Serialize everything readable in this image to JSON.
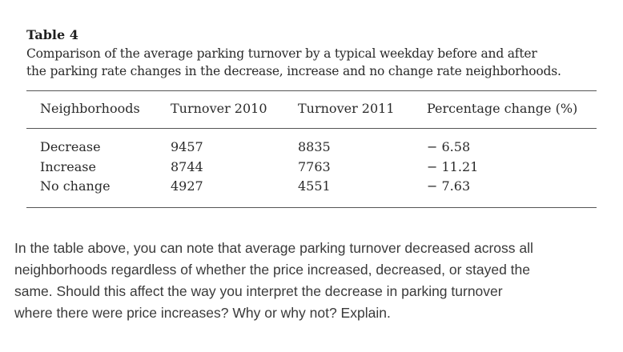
{
  "table": {
    "label": "Table 4",
    "caption_line1": "Comparison of the average parking turnover by a typical weekday before and after",
    "caption_line2": "the parking rate changes in the decrease, increase and no change rate neighborhoods.",
    "headers": [
      "Neighborhoods",
      "Turnover 2010",
      "Turnover 2011",
      "Percentage change (%)"
    ],
    "rows": [
      [
        "Decrease",
        "9457",
        "8835",
        "− 6.58"
      ],
      [
        "Increase",
        "8744",
        "7763",
        "− 11.21"
      ],
      [
        "No change",
        "4927",
        "4551",
        "− 7.63"
      ]
    ]
  },
  "question": {
    "line1": "In the table above, you can note that average parking turnover decreased across all",
    "line2": "neighborhoods regardless of whether the price increased, decreased, or stayed the",
    "line3": "same. Should this affect the way you interpret the decrease in parking turnover",
    "line4": "where there were price increases? Why or why not? Explain."
  }
}
